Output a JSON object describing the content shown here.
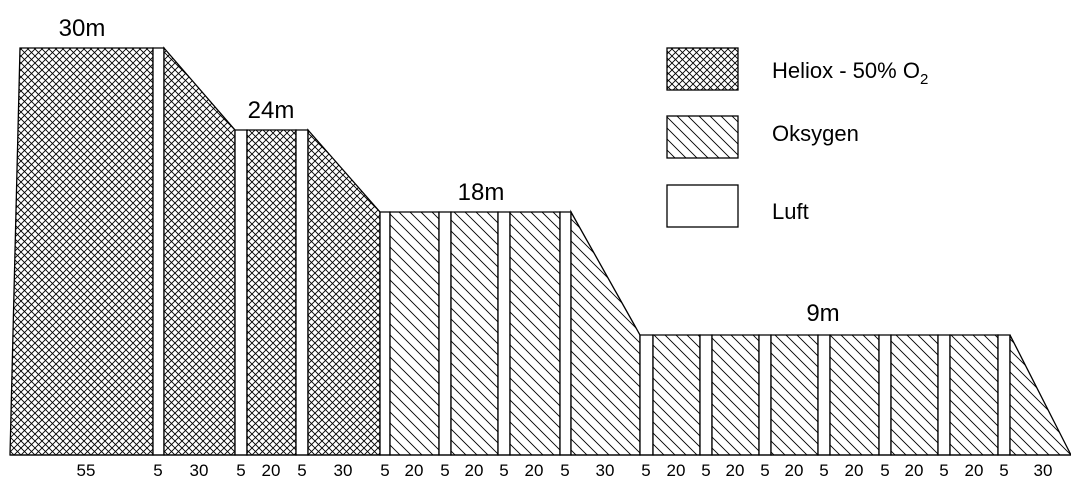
{
  "colors": {
    "heliox": "#ffffff",
    "oxygen": "#ffffff",
    "air": "#ffffff",
    "stroke": "#000000"
  },
  "legend": [
    {
      "key": "heliox",
      "label_main": "Heliox - 50% O",
      "label_sub": "2"
    },
    {
      "key": "oxygen",
      "label_main": "Oksygen",
      "label_sub": ""
    },
    {
      "key": "air",
      "label_main": "Luft",
      "label_sub": ""
    }
  ],
  "depth_labels": [
    "30m",
    "24m",
    "18m",
    "9m"
  ],
  "segments": [
    {
      "gas": "heliox",
      "duration": "55"
    },
    {
      "gas": "air",
      "duration": "5"
    },
    {
      "gas": "heliox",
      "duration": "30"
    },
    {
      "gas": "air",
      "duration": "5"
    },
    {
      "gas": "heliox",
      "duration": "20"
    },
    {
      "gas": "air",
      "duration": "5"
    },
    {
      "gas": "heliox",
      "duration": "30"
    },
    {
      "gas": "air",
      "duration": "5"
    },
    {
      "gas": "oxygen",
      "duration": "20"
    },
    {
      "gas": "air",
      "duration": "5"
    },
    {
      "gas": "oxygen",
      "duration": "20"
    },
    {
      "gas": "air",
      "duration": "5"
    },
    {
      "gas": "oxygen",
      "duration": "20"
    },
    {
      "gas": "air",
      "duration": "5"
    },
    {
      "gas": "oxygen",
      "duration": "30"
    },
    {
      "gas": "air",
      "duration": "5"
    },
    {
      "gas": "oxygen",
      "duration": "20"
    },
    {
      "gas": "air",
      "duration": "5"
    },
    {
      "gas": "oxygen",
      "duration": "20"
    },
    {
      "gas": "air",
      "duration": "5"
    },
    {
      "gas": "oxygen",
      "duration": "20"
    },
    {
      "gas": "air",
      "duration": "5"
    },
    {
      "gas": "oxygen",
      "duration": "20"
    },
    {
      "gas": "air",
      "duration": "5"
    },
    {
      "gas": "oxygen",
      "duration": "20"
    },
    {
      "gas": "air",
      "duration": "5"
    },
    {
      "gas": "oxygen",
      "duration": "20"
    },
    {
      "gas": "air",
      "duration": "5"
    },
    {
      "gas": "oxygen",
      "duration": "30"
    }
  ]
}
